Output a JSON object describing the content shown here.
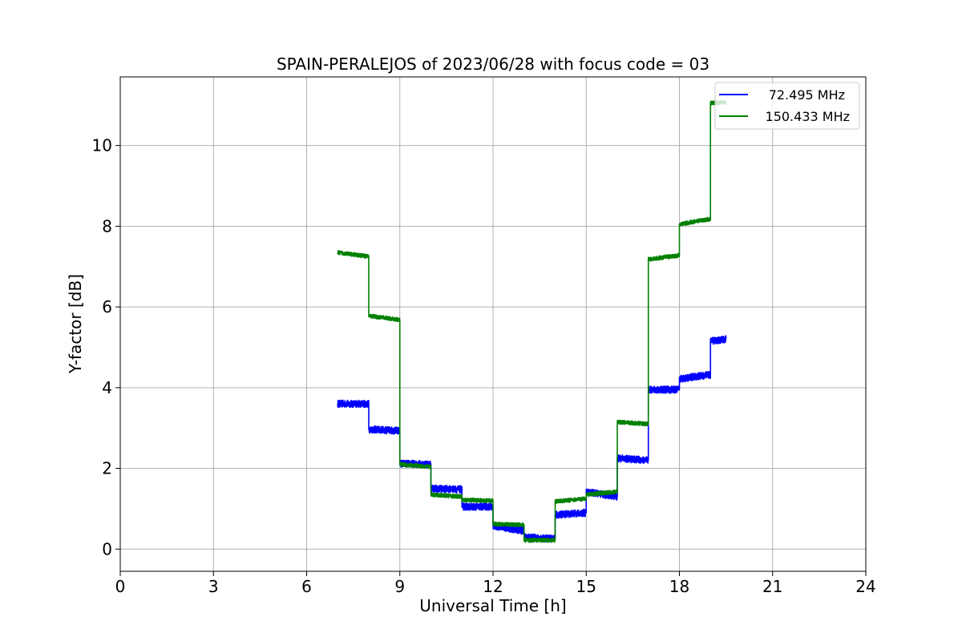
{
  "chart_data": {
    "type": "line",
    "title": "SPAIN-PERALEJOS of 2023/06/28 with focus code = 03",
    "xlabel": "Universal Time [h]",
    "ylabel": "Y-factor [dB]",
    "xlim": [
      0,
      24
    ],
    "ylim": [
      -0.55,
      11.7
    ],
    "xticks": [
      0,
      3,
      6,
      9,
      12,
      15,
      18,
      21,
      24
    ],
    "yticks": [
      0,
      2,
      4,
      6,
      8,
      10
    ],
    "grid": true,
    "legend_position": "upper right",
    "series": [
      {
        "name": "72.495 MHz",
        "color": "#0000ff",
        "noise": 0.09,
        "segments": [
          {
            "x": [
              7.0,
              8.0
            ],
            "y": [
              3.6,
              3.6
            ]
          },
          {
            "x": [
              8.0,
              9.0
            ],
            "y": [
              2.97,
              2.93
            ]
          },
          {
            "x": [
              9.0,
              10.0
            ],
            "y": [
              2.12,
              2.1
            ]
          },
          {
            "x": [
              10.0,
              11.0
            ],
            "y": [
              1.5,
              1.48
            ]
          },
          {
            "x": [
              11.0,
              12.0
            ],
            "y": [
              1.05,
              1.05
            ]
          },
          {
            "x": [
              12.0,
              13.0
            ],
            "y": [
              0.58,
              0.45
            ]
          },
          {
            "x": [
              13.0,
              14.0
            ],
            "y": [
              0.3,
              0.25
            ]
          },
          {
            "x": [
              14.0,
              15.0
            ],
            "y": [
              0.85,
              0.9
            ]
          },
          {
            "x": [
              15.0,
              16.0
            ],
            "y": [
              1.42,
              1.3
            ]
          },
          {
            "x": [
              16.0,
              17.0
            ],
            "y": [
              2.25,
              2.2
            ]
          },
          {
            "x": [
              17.0,
              18.0
            ],
            "y": [
              3.95,
              3.95
            ]
          },
          {
            "x": [
              18.0,
              19.0
            ],
            "y": [
              4.22,
              4.32
            ]
          },
          {
            "x": [
              19.0,
              19.5
            ],
            "y": [
              5.15,
              5.2
            ]
          }
        ]
      },
      {
        "name": "150.433 MHz",
        "color": "#008000",
        "noise": 0.05,
        "segments": [
          {
            "x": [
              7.0,
              8.0
            ],
            "y": [
              7.35,
              7.25
            ]
          },
          {
            "x": [
              8.0,
              9.0
            ],
            "y": [
              5.78,
              5.68
            ]
          },
          {
            "x": [
              9.0,
              10.0
            ],
            "y": [
              2.1,
              2.04
            ]
          },
          {
            "x": [
              10.0,
              11.0
            ],
            "y": [
              1.35,
              1.3
            ]
          },
          {
            "x": [
              11.0,
              12.0
            ],
            "y": [
              1.22,
              1.2
            ]
          },
          {
            "x": [
              12.0,
              13.0
            ],
            "y": [
              0.62,
              0.6
            ]
          },
          {
            "x": [
              13.0,
              14.0
            ],
            "y": [
              0.22,
              0.22
            ]
          },
          {
            "x": [
              14.0,
              15.0
            ],
            "y": [
              1.18,
              1.25
            ]
          },
          {
            "x": [
              15.0,
              16.0
            ],
            "y": [
              1.35,
              1.42
            ]
          },
          {
            "x": [
              16.0,
              17.0
            ],
            "y": [
              3.15,
              3.1
            ]
          },
          {
            "x": [
              17.0,
              18.0
            ],
            "y": [
              7.18,
              7.28
            ]
          },
          {
            "x": [
              18.0,
              19.0
            ],
            "y": [
              8.05,
              8.18
            ]
          },
          {
            "x": [
              19.0,
              19.5
            ],
            "y": [
              11.05,
              11.07
            ]
          }
        ]
      }
    ]
  }
}
